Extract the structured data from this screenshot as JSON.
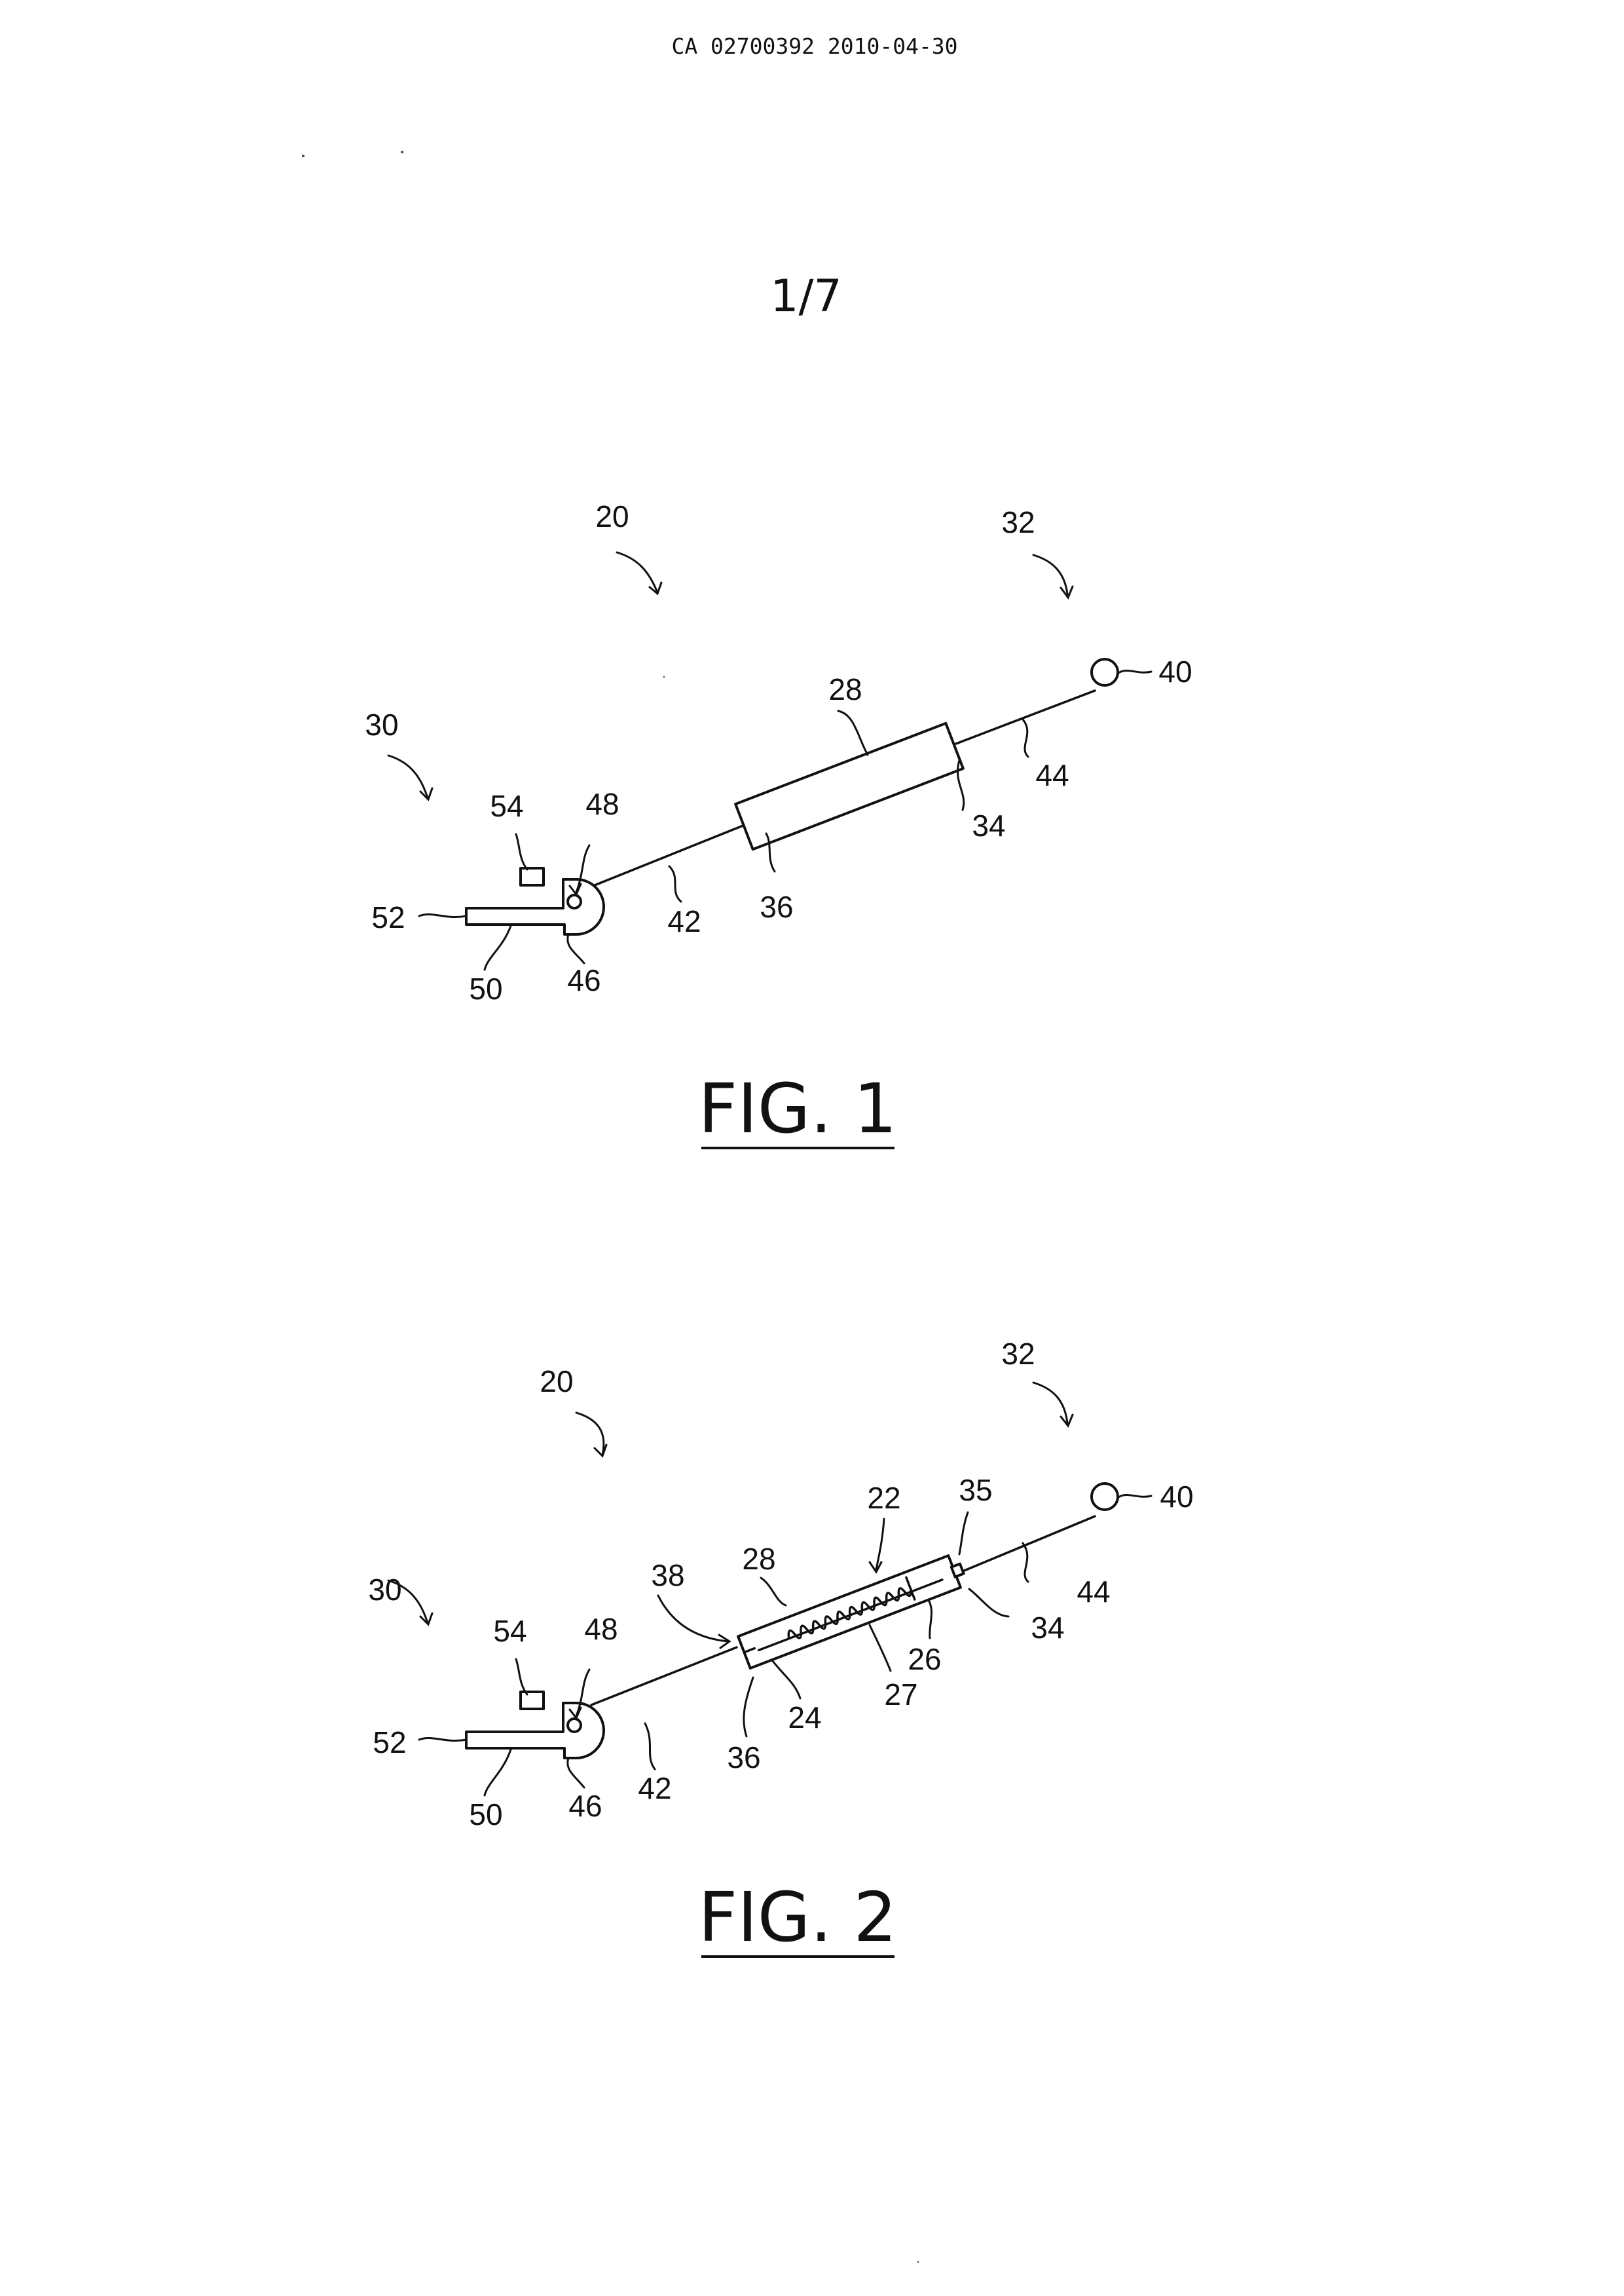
{
  "header": {
    "document_id": "CA 02700392 2010-04-30",
    "sheet_number": "1/7"
  },
  "figures": [
    {
      "title": "FIG. 1",
      "labels": {
        "l20": "20",
        "l32": "32",
        "l40": "40",
        "l28": "28",
        "l30": "30",
        "l44": "44",
        "l34": "34",
        "l54": "54",
        "l48": "48",
        "l52": "52",
        "l42": "42",
        "l36": "36",
        "l50": "50",
        "l46": "46"
      }
    },
    {
      "title": "FIG. 2",
      "labels": {
        "l20": "20",
        "l32": "32",
        "l40": "40",
        "l35": "35",
        "l22": "22",
        "l28": "28",
        "l38": "38",
        "l44": "44",
        "l34": "34",
        "l30": "30",
        "l26": "26",
        "l54": "54",
        "l48": "48",
        "l27": "27",
        "l24": "24",
        "l52": "52",
        "l42": "42",
        "l36": "36",
        "l50": "50",
        "l46": "46"
      }
    }
  ]
}
